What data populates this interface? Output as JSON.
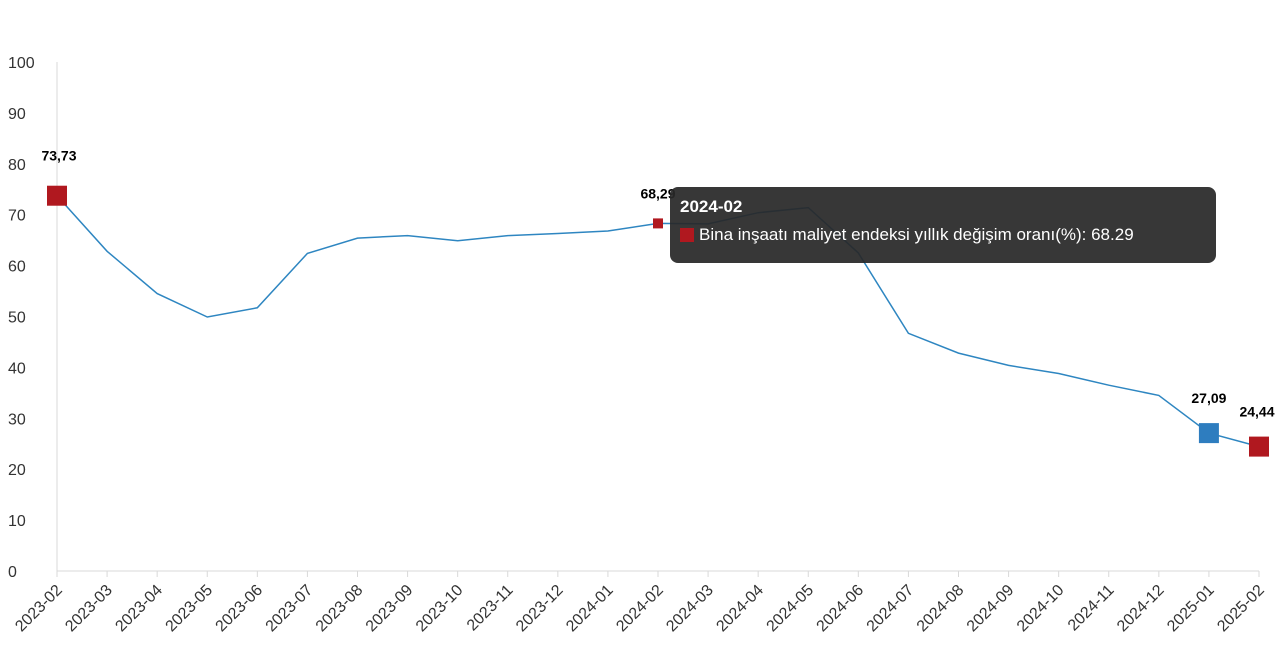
{
  "chart_data": {
    "type": "line",
    "categories": [
      "2023-02",
      "2023-03",
      "2023-04",
      "2023-05",
      "2023-06",
      "2023-07",
      "2023-08",
      "2023-09",
      "2023-10",
      "2023-11",
      "2023-12",
      "2024-01",
      "2024-02",
      "2024-03",
      "2024-04",
      "2024-05",
      "2024-06",
      "2024-07",
      "2024-08",
      "2024-09",
      "2024-10",
      "2024-11",
      "2024-12",
      "2025-01",
      "2025-02"
    ],
    "series": [
      {
        "name": "Bina inşaatı maliyet endeksi yıllık değişim oranı(%)",
        "values": [
          73.73,
          62.8,
          54.5,
          49.9,
          51.7,
          62.4,
          65.4,
          65.9,
          64.9,
          65.9,
          66.3,
          66.8,
          68.29,
          68.2,
          70.4,
          71.4,
          62.5,
          46.7,
          42.8,
          40.4,
          38.8,
          36.5,
          34.5,
          27.09,
          24.44
        ]
      }
    ],
    "ylim": [
      0,
      100
    ],
    "yticks": [
      0,
      10,
      20,
      30,
      40,
      50,
      60,
      70,
      80,
      90,
      100
    ],
    "grid": false,
    "legend": "none",
    "line_color": "#2e86c1",
    "highlight_color": "#b0181f",
    "min_marker_color": "#2e7dbf",
    "data_labels": [
      {
        "category": "2023-02",
        "text": "73,73",
        "marker": "high"
      },
      {
        "category": "2024-02",
        "text": "68,29",
        "marker": "hover"
      },
      {
        "category": "2025-01",
        "text": "27,09",
        "marker": "min"
      },
      {
        "category": "2025-02",
        "text": "24,44",
        "marker": "high"
      }
    ],
    "tooltip": {
      "category": "2024-02",
      "title": "2024-02",
      "text": "Bina inşaatı maliyet endeksi yıllık değişim oranı(%): 68.29"
    }
  }
}
